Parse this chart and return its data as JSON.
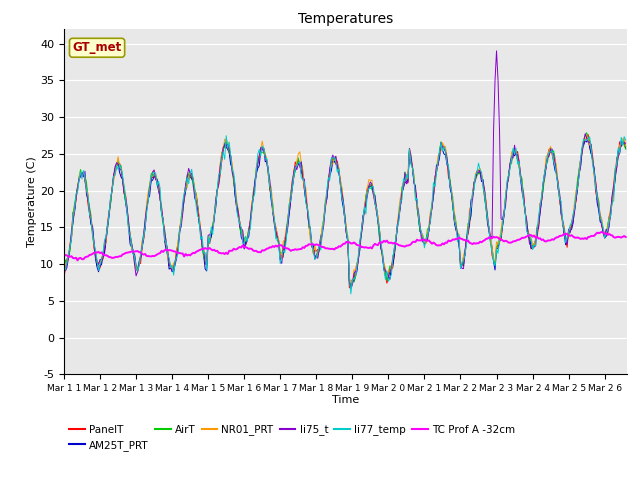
{
  "title": "Temperatures",
  "xlabel": "Time",
  "ylabel": "Temperature (C)",
  "ylim": [
    -5,
    42
  ],
  "xlim": [
    0,
    375
  ],
  "annotation_text": "GT_met",
  "annotation_color": "#aa0000",
  "annotation_bg": "#ffffcc",
  "plot_bg": "#e8e8e8",
  "series_colors": {
    "PanelT": "#ff0000",
    "AM25T_PRT": "#0000cc",
    "AirT": "#00cc00",
    "NR01_PRT": "#ff9900",
    "li75_t": "#8800cc",
    "li77_temp": "#00cccc",
    "TC Prof A -32cm": "#ff00ff"
  },
  "x_tick_labels": [
    "Mar 1 1",
    "Mar 1 2",
    "Mar 1 3",
    "Mar 1 4",
    "Mar 1 5",
    "Mar 1 6",
    "Mar 1 7",
    "Mar 1 8",
    "Mar 1 9",
    "Mar 2 0",
    "Mar 2 1",
    "Mar 2 2",
    "Mar 2 3",
    "Mar 2 4",
    "Mar 2 5",
    "Mar 2 6"
  ],
  "x_tick_positions": [
    0,
    24,
    48,
    72,
    96,
    120,
    144,
    168,
    192,
    216,
    240,
    264,
    288,
    312,
    336,
    360
  ],
  "y_ticks": [
    -5,
    0,
    5,
    10,
    15,
    20,
    25,
    30,
    35,
    40
  ]
}
